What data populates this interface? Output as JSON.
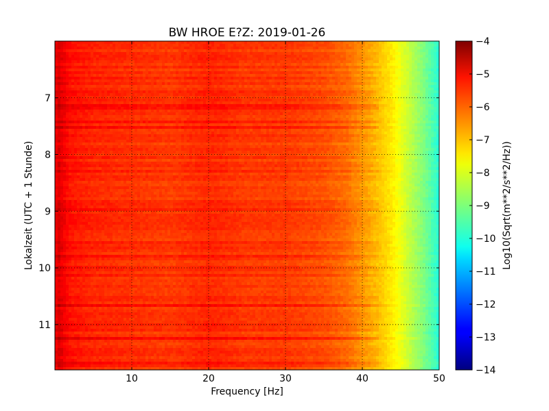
{
  "chart_data": {
    "type": "heatmap",
    "title": "BW HROE E?Z: 2019-01-26",
    "xlabel": "Frequency [Hz]",
    "ylabel": "Lokalzeit (UTC + 1 Stunde)",
    "colorbar_label": "Log10(Sqrt(m**2/s**2/Hz))",
    "xlim": [
      0,
      50
    ],
    "ylim": [
      6,
      11.8
    ],
    "y_inverted": true,
    "x_ticks": [
      10,
      20,
      30,
      40,
      50
    ],
    "y_ticks": [
      7,
      8,
      9,
      10,
      11
    ],
    "colorbar_range": [
      -14,
      -4
    ],
    "colorbar_ticks": [
      -4,
      -5,
      -6,
      -7,
      -8,
      -9,
      -10,
      -11,
      -12,
      -13,
      -14
    ],
    "colormap": "jet",
    "grid": true,
    "spectral_profile": {
      "frequency_hz": [
        0,
        0.5,
        1,
        2,
        5,
        10,
        15,
        20,
        25,
        30,
        35,
        38,
        40,
        42,
        44,
        46,
        48,
        50
      ],
      "log10_amplitude": [
        -5.2,
        -4.9,
        -5.1,
        -5.4,
        -5.6,
        -5.7,
        -5.8,
        -5.6,
        -5.8,
        -5.8,
        -6.0,
        -6.3,
        -6.7,
        -7.1,
        -7.6,
        -8.3,
        -9.0,
        -9.9
      ]
    }
  }
}
